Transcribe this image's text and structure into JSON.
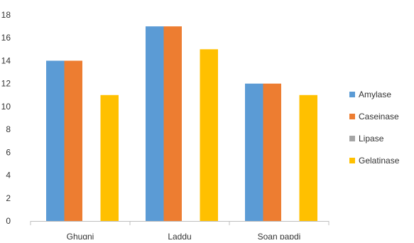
{
  "chart_data": {
    "type": "bar",
    "categories": [
      "Ghugni",
      "Laddu",
      "Soan papdi"
    ],
    "series": [
      {
        "name": "Amylase",
        "color": "#5B9BD5",
        "values": [
          14,
          17,
          12
        ]
      },
      {
        "name": "Caseinase",
        "color": "#ED7D31",
        "values": [
          14,
          17,
          12
        ]
      },
      {
        "name": "Lipase",
        "color": "#A5A5A5",
        "values": [
          0,
          0,
          0
        ]
      },
      {
        "name": "Gelatinase",
        "color": "#FFC000",
        "values": [
          11,
          15,
          11
        ]
      }
    ],
    "ylim": [
      0,
      18
    ],
    "y_ticks": [
      0,
      2,
      4,
      6,
      8,
      10,
      12,
      14,
      16,
      18
    ],
    "grid": false,
    "legend_position": "right"
  }
}
